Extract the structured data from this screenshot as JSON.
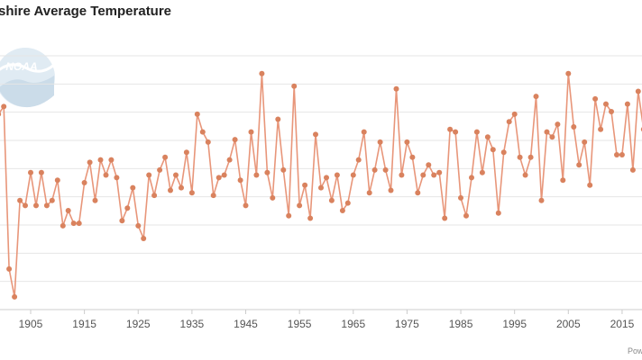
{
  "chart_data": {
    "type": "line",
    "title": "shire Average Temperature",
    "xlabel": "",
    "ylabel": "",
    "x_start": 1899,
    "x_end": 2019,
    "ylim": [
      0,
      10
    ],
    "y_note": "y values are estimated positions relative to the gridlines; y-axis tick labels are cropped out of the image",
    "x_ticks": [
      "1905",
      "1915",
      "1925",
      "1935",
      "1945",
      "1955",
      "1965",
      "1975",
      "1985",
      "1995",
      "2005",
      "2015"
    ],
    "grid": true,
    "legend": "none",
    "series": [
      {
        "x": [
          1899,
          1900,
          1901,
          1902,
          1903,
          1904,
          1905,
          1906,
          1907,
          1908,
          1909,
          1910,
          1911,
          1912,
          1913,
          1914,
          1915,
          1916,
          1917,
          1918,
          1919,
          1920,
          1921,
          1922,
          1923,
          1924,
          1925,
          1926,
          1927,
          1928,
          1929,
          1930,
          1931,
          1932,
          1933,
          1934,
          1935,
          1936,
          1937,
          1938,
          1939,
          1940,
          1941,
          1942,
          1943,
          1944,
          1945,
          1946,
          1947,
          1948,
          1949,
          1950,
          1951,
          1952,
          1953,
          1954,
          1955,
          1956,
          1957,
          1958,
          1959,
          1960,
          1961,
          1962,
          1963,
          1964,
          1965,
          1966,
          1967,
          1968,
          1969,
          1970,
          1971,
          1972,
          1973,
          1974,
          1975,
          1976,
          1977,
          1978,
          1979,
          1980,
          1981,
          1982,
          1983,
          1984,
          1985,
          1986,
          1987,
          1988,
          1989,
          1990,
          1991,
          1992,
          1993,
          1994,
          1995,
          1996,
          1997,
          1998,
          1999,
          2000,
          2001,
          2002,
          2003,
          2004,
          2005,
          2006,
          2007,
          2008,
          2009,
          2010,
          2011,
          2012,
          2013,
          2014,
          2015,
          2016,
          2017,
          2018,
          2019
        ],
        "values": [
          7.7,
          8.0,
          1.6,
          0.5,
          4.3,
          4.1,
          5.4,
          4.1,
          5.4,
          4.1,
          4.3,
          5.1,
          3.3,
          3.9,
          3.4,
          3.4,
          5.0,
          5.8,
          4.3,
          5.9,
          5.3,
          5.9,
          5.2,
          3.5,
          4.0,
          4.8,
          3.3,
          2.8,
          5.3,
          4.5,
          5.5,
          6.0,
          4.7,
          5.3,
          4.8,
          6.2,
          4.6,
          7.7,
          7.0,
          6.6,
          4.5,
          5.2,
          5.3,
          5.9,
          6.7,
          5.1,
          4.1,
          7.0,
          5.3,
          9.3,
          5.4,
          4.4,
          7.5,
          5.5,
          3.7,
          8.8,
          4.1,
          4.9,
          3.6,
          6.9,
          4.8,
          5.2,
          4.3,
          5.3,
          3.9,
          4.2,
          5.3,
          5.9,
          7.0,
          4.6,
          5.5,
          6.6,
          5.5,
          4.7,
          8.7,
          5.3,
          6.6,
          6.0,
          4.6,
          5.3,
          5.7,
          5.3,
          5.4,
          3.6,
          7.1,
          7.0,
          4.4,
          3.7,
          5.2,
          7.0,
          5.4,
          6.8,
          6.3,
          3.8,
          6.2,
          7.4,
          7.7,
          6.0,
          5.3,
          6.0,
          8.4,
          4.3,
          7.0,
          6.8,
          7.3,
          5.1,
          9.3,
          7.2,
          5.7,
          6.6,
          4.9,
          8.3,
          7.1,
          8.1,
          7.8,
          6.1,
          6.1,
          8.1,
          5.5,
          8.6,
          7.1
        ]
      }
    ],
    "colors": {
      "line": "#e8967a",
      "marker": "#d9825e",
      "grid": "#e6e6e6",
      "axis": "#cccccc"
    }
  },
  "logo": {
    "text": "NOAA",
    "icon": "noaa-logo-icon"
  },
  "credit": "Pow"
}
